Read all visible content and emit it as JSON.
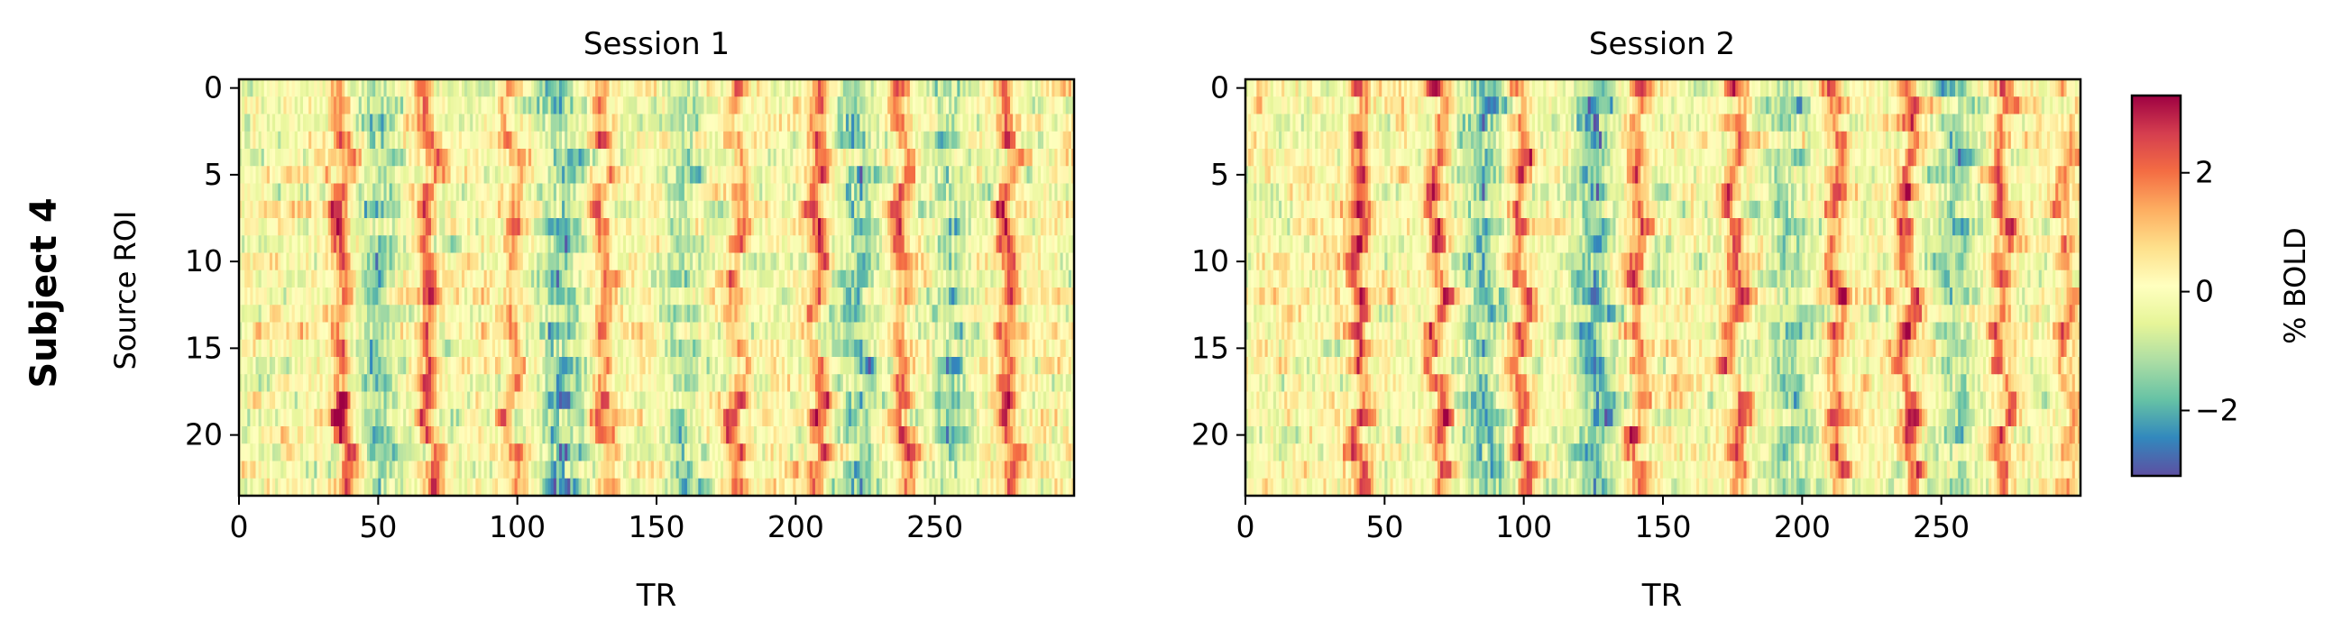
{
  "figure": {
    "row_label": "Subject 4",
    "colorbar": {
      "label": "% BOLD",
      "ticks": [
        {
          "value": 2,
          "label": "2"
        },
        {
          "value": 0,
          "label": "0"
        },
        {
          "value": -2,
          "label": "−2"
        }
      ],
      "vmin": -3.1,
      "vmax": 3.3,
      "colormap": "Spectral_r",
      "colors": [
        "#5e4fa2",
        "#3288bd",
        "#66c2a5",
        "#abdda4",
        "#e6f598",
        "#ffffbf",
        "#fee08b",
        "#fdae61",
        "#f46d43",
        "#d53e4f",
        "#9e0142"
      ]
    }
  },
  "chart_data": [
    {
      "type": "heatmap",
      "title": "Session 1",
      "xlabel": "TR",
      "ylabel": "Source ROI",
      "xlim": [
        0,
        300
      ],
      "ylim": [
        23.5,
        -0.5
      ],
      "n_rows": 24,
      "n_cols": 300,
      "xticks": [
        0,
        50,
        100,
        150,
        200,
        250
      ],
      "xtick_labels": [
        "0",
        "50",
        "100",
        "150",
        "200",
        "250"
      ],
      "yticks": [
        0,
        5,
        10,
        15,
        20
      ],
      "ytick_labels": [
        "0",
        "5",
        "10",
        "15",
        "20"
      ],
      "events": [
        {
          "tr": 37,
          "amp": 2.6
        },
        {
          "tr": 68,
          "amp": 2.4
        },
        {
          "tr": 98,
          "amp": 1.6
        },
        {
          "tr": 131,
          "amp": 2.0
        },
        {
          "tr": 179,
          "amp": 2.0
        },
        {
          "tr": 208,
          "amp": 2.4
        },
        {
          "tr": 238,
          "amp": 2.1
        },
        {
          "tr": 276,
          "amp": 2.5
        }
      ],
      "troughs": [
        {
          "tr": 50,
          "amp": -1.6
        },
        {
          "tr": 115,
          "amp": -1.9
        },
        {
          "tr": 160,
          "amp": -1.3
        },
        {
          "tr": 222,
          "amp": -1.8
        },
        {
          "tr": 255,
          "amp": -1.4
        }
      ]
    },
    {
      "type": "heatmap",
      "title": "Session 2",
      "xlabel": "TR",
      "ylabel": "",
      "xlim": [
        0,
        300
      ],
      "ylim": [
        23.5,
        -0.5
      ],
      "n_rows": 24,
      "n_cols": 300,
      "xticks": [
        0,
        50,
        100,
        150,
        200,
        250
      ],
      "xtick_labels": [
        "0",
        "50",
        "100",
        "150",
        "200",
        "250"
      ],
      "yticks": [
        0,
        5,
        10,
        15,
        20
      ],
      "ytick_labels": [
        "0",
        "5",
        "10",
        "15",
        "20"
      ],
      "events": [
        {
          "tr": 41,
          "amp": 2.2
        },
        {
          "tr": 69,
          "amp": 2.2
        },
        {
          "tr": 99,
          "amp": 2.0
        },
        {
          "tr": 141,
          "amp": 1.8
        },
        {
          "tr": 176,
          "amp": 2.1
        },
        {
          "tr": 212,
          "amp": 2.0
        },
        {
          "tr": 238,
          "amp": 2.2
        },
        {
          "tr": 272,
          "amp": 2.0
        },
        {
          "tr": 295,
          "amp": 1.4
        }
      ],
      "troughs": [
        {
          "tr": 85,
          "amp": -1.8
        },
        {
          "tr": 125,
          "amp": -2.1
        },
        {
          "tr": 195,
          "amp": -1.4
        },
        {
          "tr": 255,
          "amp": -1.4
        }
      ]
    }
  ]
}
